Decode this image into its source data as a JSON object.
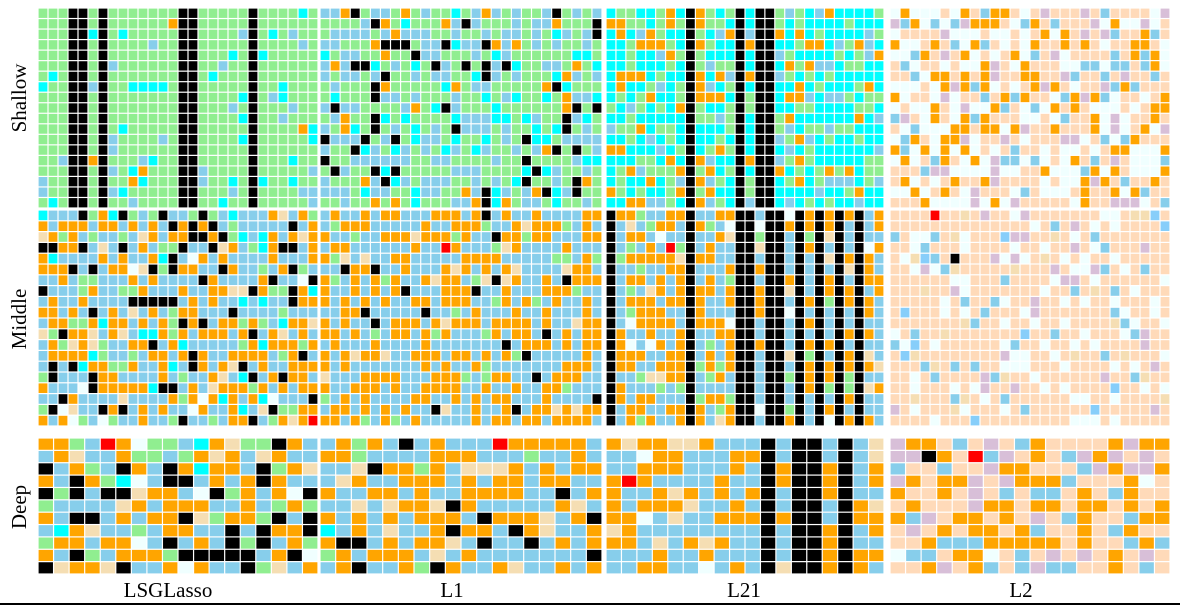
{
  "chart_data": {
    "type": "heatmap",
    "title": "",
    "columns": [
      "LSGLasso",
      "L1",
      "L21",
      "L2"
    ],
    "rows": [
      "Shallow",
      "Middle",
      "Deep"
    ],
    "grid": true,
    "colors": {
      "gridline": "#ffffff",
      "background": "#ffffff",
      "frame": "#000000",
      "palette": [
        "#000000",
        "#ffa500",
        "#87ceeb",
        "#00ffff",
        "#90ee90",
        "#f5deb3",
        "#d8bfd8",
        "#ffdab9",
        "#f0ffff",
        "#ff0000",
        "#87cefa"
      ]
    },
    "cell_counts": {
      "Shallow": {
        "rows": 19,
        "cols": 28
      },
      "Middle": {
        "rows": 20,
        "cols": 28
      },
      "Deep": {
        "rows": 11,
        "cols": 18
      }
    },
    "panel_palettes": {
      "LSGLasso": {
        "Shallow": {
          "base": "#90ee90",
          "weights": {
            "#87ceeb": 0.08,
            "#00ffff": 0.07,
            "#ffa500": 0.02
          },
          "black_columns": [
            3,
            4,
            6,
            14,
            15,
            21
          ]
        },
        "Middle": {
          "base": "#87ceeb",
          "weights": {
            "#ffa500": 0.3,
            "#000000": 0.13,
            "#90ee90": 0.1,
            "#00ffff": 0.05,
            "#f5deb3": 0.03,
            "#f0ffff": 0.02
          },
          "black_columns": []
        },
        "Deep": {
          "base": "#ffa500",
          "weights": {
            "#000000": 0.2,
            "#87ceeb": 0.25,
            "#90ee90": 0.12,
            "#f5deb3": 0.06,
            "#00ffff": 0.03,
            "#f0ffff": 0.04
          },
          "black_columns": []
        }
      },
      "L1": {
        "Shallow": {
          "base": "#90ee90",
          "weights": {
            "#87ceeb": 0.28,
            "#00ffff": 0.1,
            "#000000": 0.1,
            "#ffa500": 0.08
          },
          "black_columns": []
        },
        "Middle": {
          "base": "#87ceeb",
          "weights": {
            "#ffa500": 0.4,
            "#000000": 0.05,
            "#90ee90": 0.05,
            "#f5deb3": 0.03
          },
          "black_columns": []
        },
        "Deep": {
          "base": "#87ceeb",
          "weights": {
            "#ffa500": 0.45,
            "#000000": 0.06,
            "#f5deb3": 0.08,
            "#90ee90": 0.04,
            "#00ffff": 0.02
          },
          "black_columns": []
        }
      },
      "L21": {
        "Shallow": {
          "base": "#00ffff",
          "weights": {
            "#90ee90": 0.3,
            "#ffa500": 0.16,
            "#87ceeb": 0.1
          },
          "black_columns": [
            8,
            13,
            15,
            16
          ]
        },
        "Middle": {
          "base": "#87ceeb",
          "weights": {
            "#ffa500": 0.35,
            "#90ee90": 0.1,
            "#f5deb3": 0.05,
            "#f0ffff": 0.03
          },
          "black_columns": [
            0,
            8,
            13,
            14,
            16,
            17,
            19,
            21,
            23,
            25
          ]
        },
        "Deep": {
          "base": "#87ceeb",
          "weights": {
            "#ffa500": 0.4,
            "#f5deb3": 0.08,
            "#f0ffff": 0.04
          },
          "black_columns": [
            10,
            12,
            13,
            15
          ]
        }
      },
      "L2": {
        "Shallow": {
          "base": "#ffdab9",
          "weights": {
            "#f0ffff": 0.25,
            "#ffa500": 0.2,
            "#87ceeb": 0.12,
            "#d8bfd8": 0.08
          },
          "black_columns": []
        },
        "Middle": {
          "base": "#ffdab9",
          "weights": {
            "#f0ffff": 0.15,
            "#87ceeb": 0.06,
            "#d8bfd8": 0.04,
            "#f5deb3": 0.04,
            "#87cefa": 0.02
          },
          "black_columns": []
        },
        "Deep": {
          "base": "#ffdab9",
          "weights": {
            "#ffa500": 0.35,
            "#87ceeb": 0.15,
            "#d8bfd8": 0.12,
            "#f0ffff": 0.03
          },
          "black_columns": []
        }
      }
    },
    "highlight_cells": [
      {
        "column": "LSGLasso",
        "row": "Middle",
        "r": 19,
        "c": 27,
        "color": "#ff0000"
      },
      {
        "column": "LSGLasso",
        "row": "Deep",
        "r": 0,
        "c": 4,
        "color": "#ff0000"
      },
      {
        "column": "L1",
        "row": "Middle",
        "r": 3,
        "c": 12,
        "color": "#ff0000"
      },
      {
        "column": "L1",
        "row": "Deep",
        "r": 0,
        "c": 11,
        "color": "#ff0000"
      },
      {
        "column": "L21",
        "row": "Middle",
        "r": 3,
        "c": 6,
        "color": "#ff0000"
      },
      {
        "column": "L21",
        "row": "Deep",
        "r": 3,
        "c": 1,
        "color": "#ff0000"
      },
      {
        "column": "L2",
        "row": "Middle",
        "r": 0,
        "c": 4,
        "color": "#ff0000"
      },
      {
        "column": "L2",
        "row": "Middle",
        "r": 4,
        "c": 6,
        "color": "#000000"
      },
      {
        "column": "L2",
        "row": "Deep",
        "r": 1,
        "c": 5,
        "color": "#ff0000"
      },
      {
        "column": "L2",
        "row": "Deep",
        "r": 1,
        "c": 2,
        "color": "#000000"
      }
    ]
  }
}
